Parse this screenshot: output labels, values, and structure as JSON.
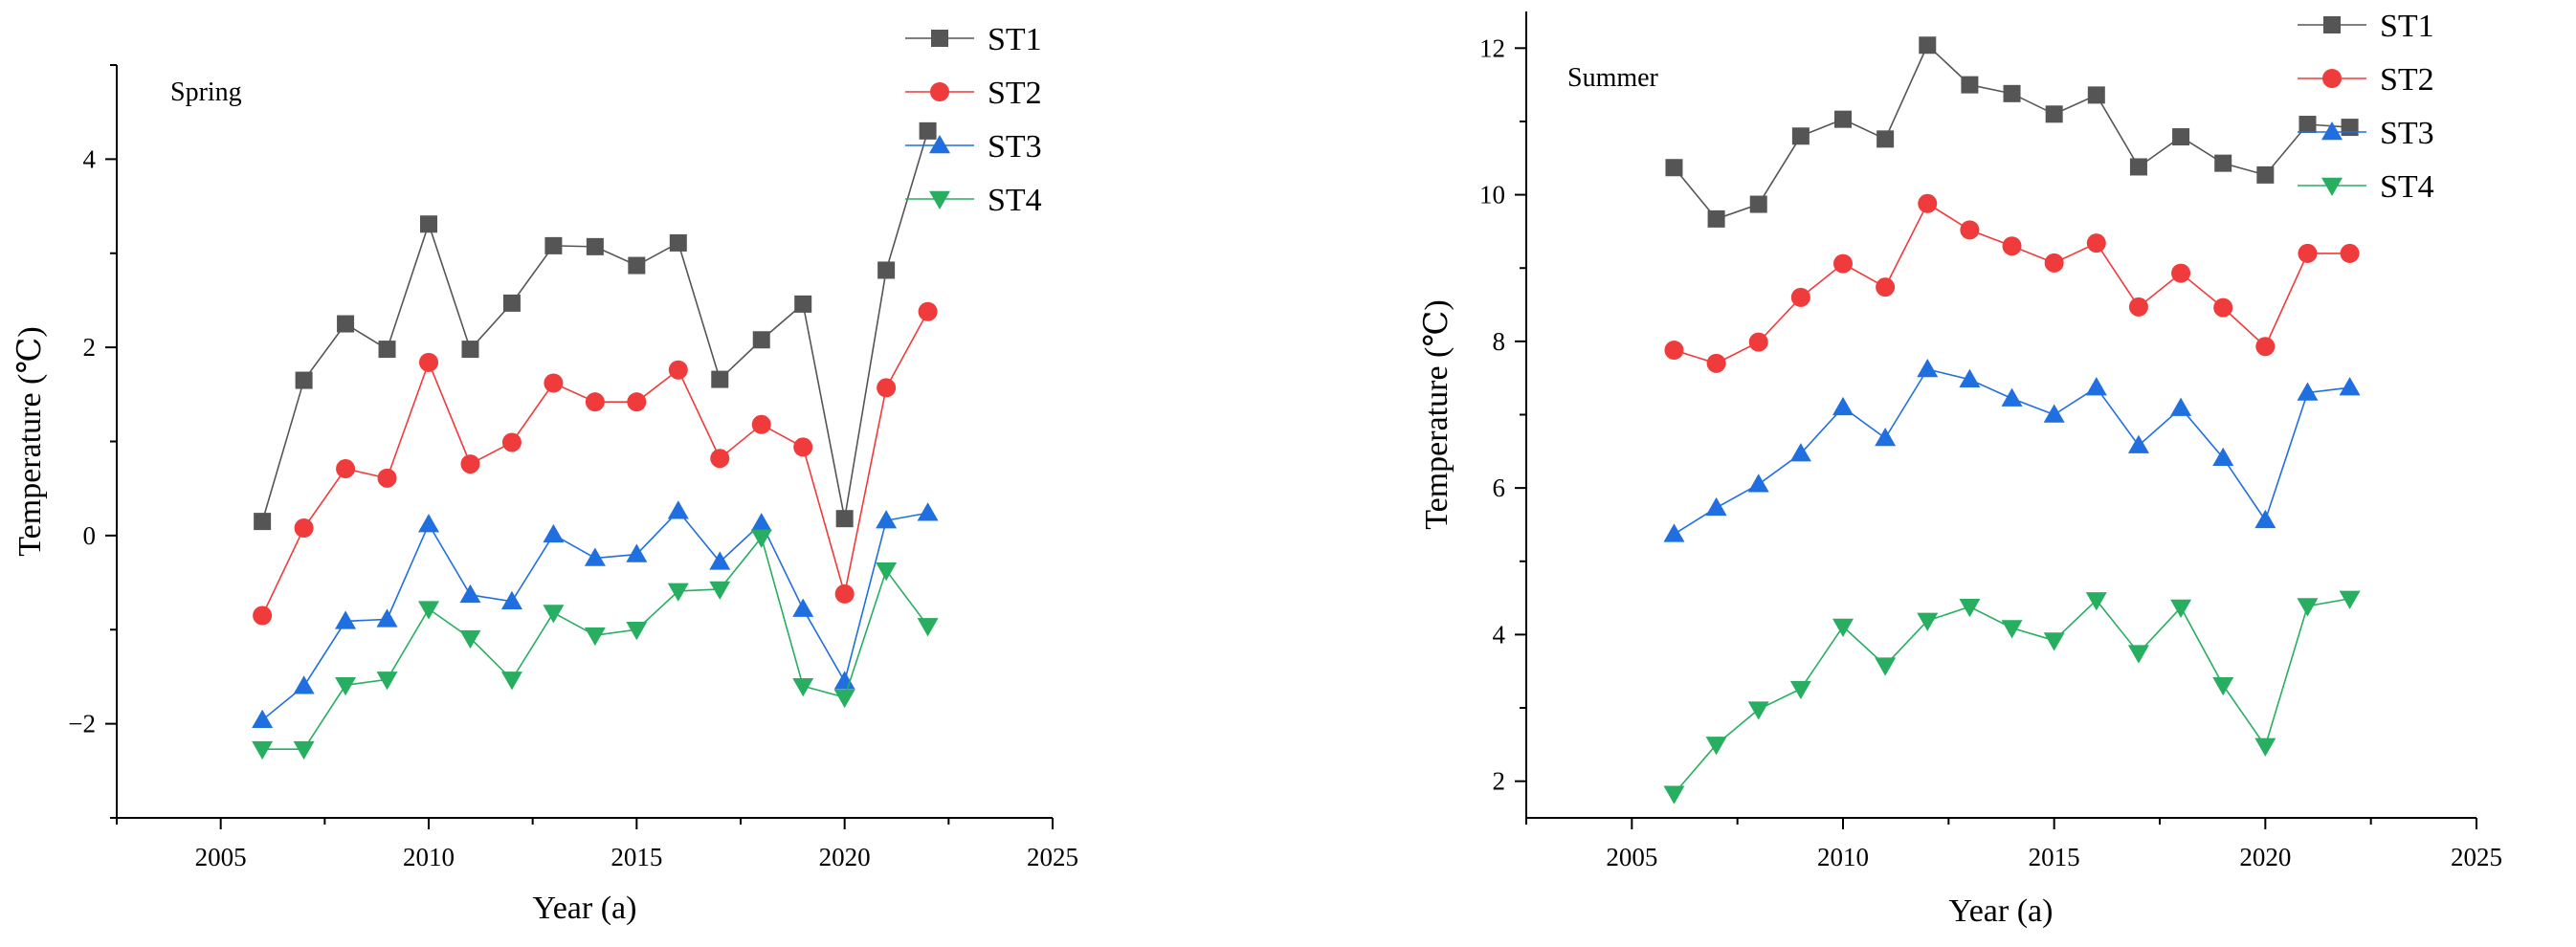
{
  "chart_data": [
    {
      "type": "line",
      "title": "Spring",
      "xlabel": "Year (a)",
      "ylabel": "Temperature (℃)",
      "xlim": [
        2002.5,
        2025
      ],
      "ylim": [
        -3.0,
        5.0
      ],
      "xticks": [
        "2005",
        "2010",
        "2015",
        "2020",
        "2025"
      ],
      "yticks": [
        "−2",
        "0",
        "2",
        "4"
      ],
      "grid": false,
      "legend_position": "top-right",
      "x": [
        2006,
        2007,
        2008,
        2009,
        2010,
        2011,
        2012,
        2013,
        2014,
        2015,
        2016,
        2017,
        2018,
        2019,
        2020,
        2021,
        2022
      ],
      "series": [
        {
          "name": "ST1",
          "color": "#555555",
          "marker": "square",
          "values": [
            0.15,
            1.65,
            2.25,
            1.98,
            3.31,
            1.98,
            2.47,
            3.08,
            3.07,
            2.87,
            3.11,
            1.66,
            2.08,
            2.46,
            0.18,
            2.82,
            4.3
          ]
        },
        {
          "name": "ST2",
          "color": "#ef3b3b",
          "marker": "circle",
          "values": [
            -0.85,
            0.08,
            0.71,
            0.61,
            1.84,
            0.76,
            0.99,
            1.62,
            1.42,
            1.42,
            1.76,
            0.82,
            1.18,
            0.94,
            -0.62,
            1.57,
            2.38
          ]
        },
        {
          "name": "ST3",
          "color": "#1f6fe0",
          "marker": "triangle-up",
          "values": [
            -1.96,
            -1.6,
            -0.91,
            -0.89,
            0.12,
            -0.63,
            -0.7,
            0.01,
            -0.24,
            -0.2,
            0.26,
            -0.28,
            0.13,
            -0.78,
            -1.55,
            0.16,
            0.24
          ]
        },
        {
          "name": "ST4",
          "color": "#27ae60",
          "marker": "triangle-down",
          "values": [
            -2.27,
            -2.27,
            -1.59,
            -1.53,
            -0.78,
            -1.09,
            -1.53,
            -0.82,
            -1.06,
            -1.0,
            -0.59,
            -0.57,
            -0.02,
            -1.6,
            -1.72,
            -0.37,
            -0.96
          ]
        }
      ]
    },
    {
      "type": "line",
      "title": "Summer",
      "xlabel": "Year (a)",
      "ylabel": "Temperature (℃)",
      "xlim": [
        2002.5,
        2025
      ],
      "ylim": [
        1.5,
        12.5
      ],
      "xticks": [
        "2005",
        "2010",
        "2015",
        "2020",
        "2025"
      ],
      "yticks": [
        "2",
        "4",
        "6",
        "8",
        "10",
        "12"
      ],
      "grid": false,
      "legend_position": "top-right",
      "x": [
        2006,
        2007,
        2008,
        2009,
        2010,
        2011,
        2012,
        2013,
        2014,
        2015,
        2016,
        2017,
        2018,
        2019,
        2020,
        2021,
        2022
      ],
      "series": [
        {
          "name": "ST1",
          "color": "#555555",
          "marker": "square",
          "values": [
            10.37,
            9.67,
            9.87,
            10.8,
            11.03,
            10.76,
            12.04,
            11.5,
            11.38,
            11.1,
            11.36,
            10.38,
            10.79,
            10.43,
            10.27,
            10.96,
            10.92
          ]
        },
        {
          "name": "ST2",
          "color": "#ef3b3b",
          "marker": "circle",
          "values": [
            7.88,
            7.7,
            7.99,
            8.6,
            9.06,
            8.74,
            9.88,
            9.52,
            9.3,
            9.07,
            9.34,
            8.47,
            8.93,
            8.46,
            7.93,
            9.2,
            9.2
          ]
        },
        {
          "name": "ST3",
          "color": "#1f6fe0",
          "marker": "triangle-up",
          "values": [
            5.37,
            5.73,
            6.05,
            6.47,
            7.1,
            6.68,
            7.62,
            7.48,
            7.22,
            7.0,
            7.37,
            6.58,
            7.09,
            6.41,
            5.56,
            7.3,
            7.37
          ]
        },
        {
          "name": "ST4",
          "color": "#27ae60",
          "marker": "triangle-down",
          "values": [
            1.83,
            2.5,
            2.98,
            3.26,
            4.11,
            3.58,
            4.19,
            4.38,
            4.09,
            3.92,
            4.47,
            3.75,
            4.37,
            3.31,
            2.48,
            4.39,
            4.49
          ]
        }
      ]
    }
  ]
}
